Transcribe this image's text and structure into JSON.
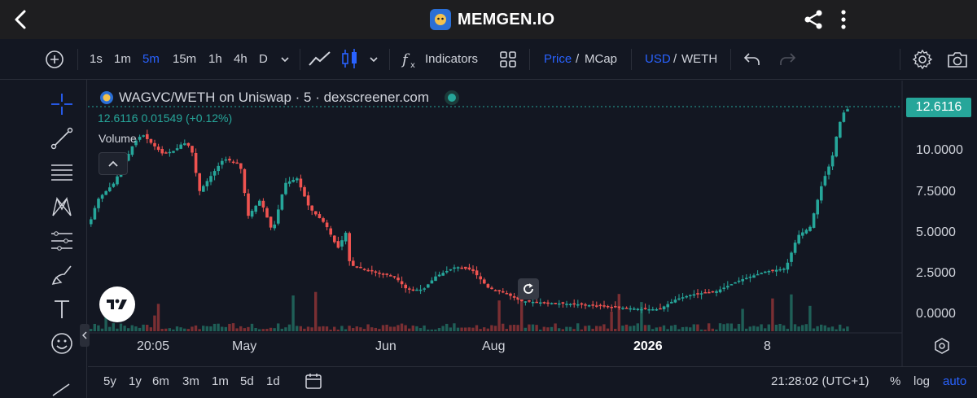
{
  "appbar": {
    "brand_name": "MEMGEN.IO",
    "icons": [
      "back-arrow-icon",
      "memgen-logo",
      "share-icon",
      "more-vertical-icon"
    ]
  },
  "toolbar": {
    "intervals": [
      "1s",
      "1m",
      "5m",
      "15m",
      "1h",
      "4h",
      "D"
    ],
    "active_interval": "5m",
    "indicators_label": "Indicators",
    "price_label": "Price",
    "slash1": "/",
    "mcap_label": "MCap",
    "usd_label": "USD",
    "slash2": "/",
    "weth_label": "WETH",
    "accent_color": "#2962ff"
  },
  "legend": {
    "title": "WAGVC/WETH on Uniswap · 5 · dexscreener.com",
    "values": "12.6116  0.01549 (+0.12%)",
    "volume_label": "Volume"
  },
  "price_axis": {
    "current_price": "12.6116",
    "labels": [
      "10.0000",
      "7.5000",
      "5.0000",
      "2.5000",
      "0.0000"
    ]
  },
  "time_axis": {
    "labels": [
      "20:05",
      "May",
      "Jun",
      "Aug",
      "2026",
      "8"
    ],
    "bold_label": "2026"
  },
  "bottombar": {
    "ranges": [
      "5y",
      "1y",
      "6m",
      "3m",
      "1m",
      "5d",
      "1d"
    ],
    "clock": "21:28:02 (UTC+1)",
    "percent_label": "%",
    "log_label": "log",
    "auto_label": "auto"
  },
  "colors": {
    "up": "#26a69a",
    "down": "#ef5350",
    "background": "#131722"
  }
}
